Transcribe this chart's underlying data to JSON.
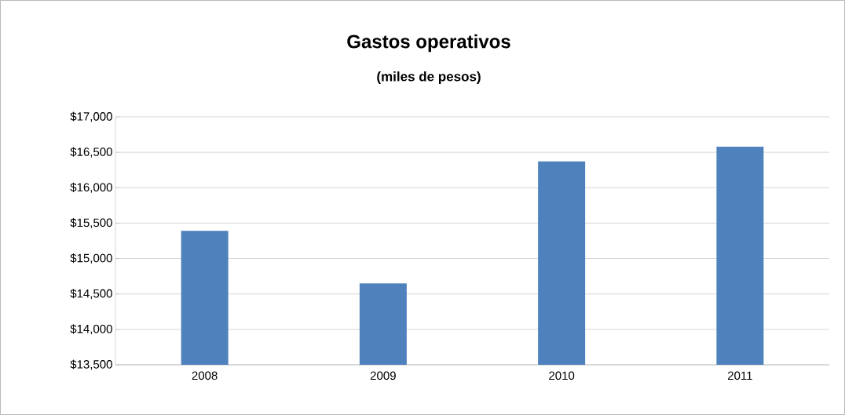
{
  "chart_data": {
    "type": "bar",
    "title": "Gastos operativos",
    "subtitle": "(miles de pesos)",
    "categories": [
      "2008",
      "2009",
      "2010",
      "2011"
    ],
    "values": [
      15390,
      14650,
      16370,
      16580
    ],
    "color": "#4f81bd",
    "ylim": [
      13500,
      17000
    ],
    "yticks": [
      {
        "value": 13500,
        "label": "$13,500"
      },
      {
        "value": 14000,
        "label": "$14,000"
      },
      {
        "value": 14500,
        "label": "$14,500"
      },
      {
        "value": 15000,
        "label": "$15,000"
      },
      {
        "value": 15500,
        "label": "$15,500"
      },
      {
        "value": 16000,
        "label": "$16,000"
      },
      {
        "value": 16500,
        "label": "$16,500"
      },
      {
        "value": 17000,
        "label": "$17,000"
      }
    ],
    "grid": "y"
  }
}
